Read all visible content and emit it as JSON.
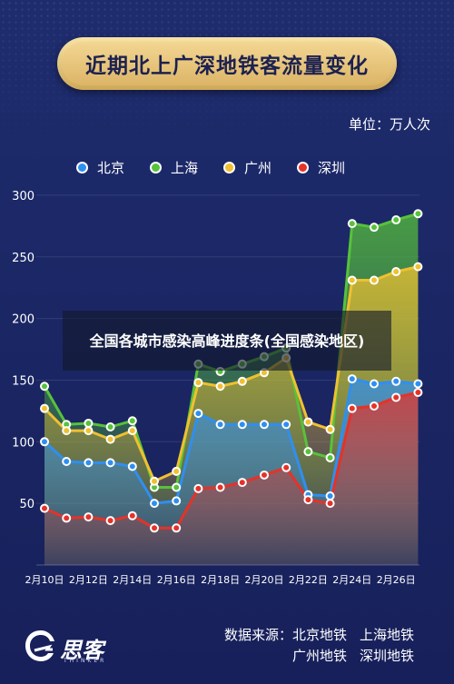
{
  "header": {
    "title": "近期北上广深地铁客流量变化",
    "unit": "单位：万人次"
  },
  "overlay": {
    "text": "全国各城市感染高峰进度条(全国感染地区)"
  },
  "footer": {
    "logo_text": "思客",
    "logo_sub": "THINKER",
    "source_label": "数据来源：",
    "sources": [
      "北京地铁",
      "上海地铁",
      "广州地铁",
      "深圳地铁"
    ]
  },
  "chart_data": {
    "type": "area",
    "x": [
      "2月10日",
      "2月11日",
      "2月12日",
      "2月13日",
      "2月14日",
      "2月15日",
      "2月16日",
      "2月17日",
      "2月18日",
      "2月19日",
      "2月20日",
      "2月21日",
      "2月22日",
      "2月23日",
      "2月24日",
      "2月25日",
      "2月26日",
      "2月27日"
    ],
    "x_tick_labels": [
      "2月10日",
      "2月12日",
      "2月14日",
      "2月16日",
      "2月18日",
      "2月20日",
      "2月22日",
      "2月24日",
      "2月26日"
    ],
    "ylim": [
      0,
      300
    ],
    "y_ticks": [
      50,
      100,
      150,
      200,
      250,
      300
    ],
    "grid": true,
    "legend": "top",
    "series": [
      {
        "name": "北京",
        "color": "#2f8ff0",
        "values": [
          100,
          84,
          83,
          83,
          80,
          50,
          52,
          123,
          114,
          114,
          114,
          114,
          57,
          56,
          151,
          147,
          149,
          147
        ]
      },
      {
        "name": "上海",
        "color": "#57c23a",
        "values": [
          145,
          114,
          115,
          112,
          117,
          63,
          63,
          163,
          157,
          163,
          169,
          176,
          92,
          87,
          277,
          274,
          280,
          285
        ]
      },
      {
        "name": "广州",
        "color": "#f0c030",
        "values": [
          127,
          109,
          109,
          102,
          109,
          68,
          76,
          148,
          145,
          149,
          156,
          168,
          116,
          110,
          231,
          231,
          238,
          242
        ]
      },
      {
        "name": "深圳",
        "color": "#e63228",
        "values": [
          46,
          38,
          39,
          36,
          40,
          30,
          30,
          62,
          63,
          67,
          73,
          79,
          53,
          50,
          127,
          129,
          136,
          140
        ]
      }
    ]
  }
}
